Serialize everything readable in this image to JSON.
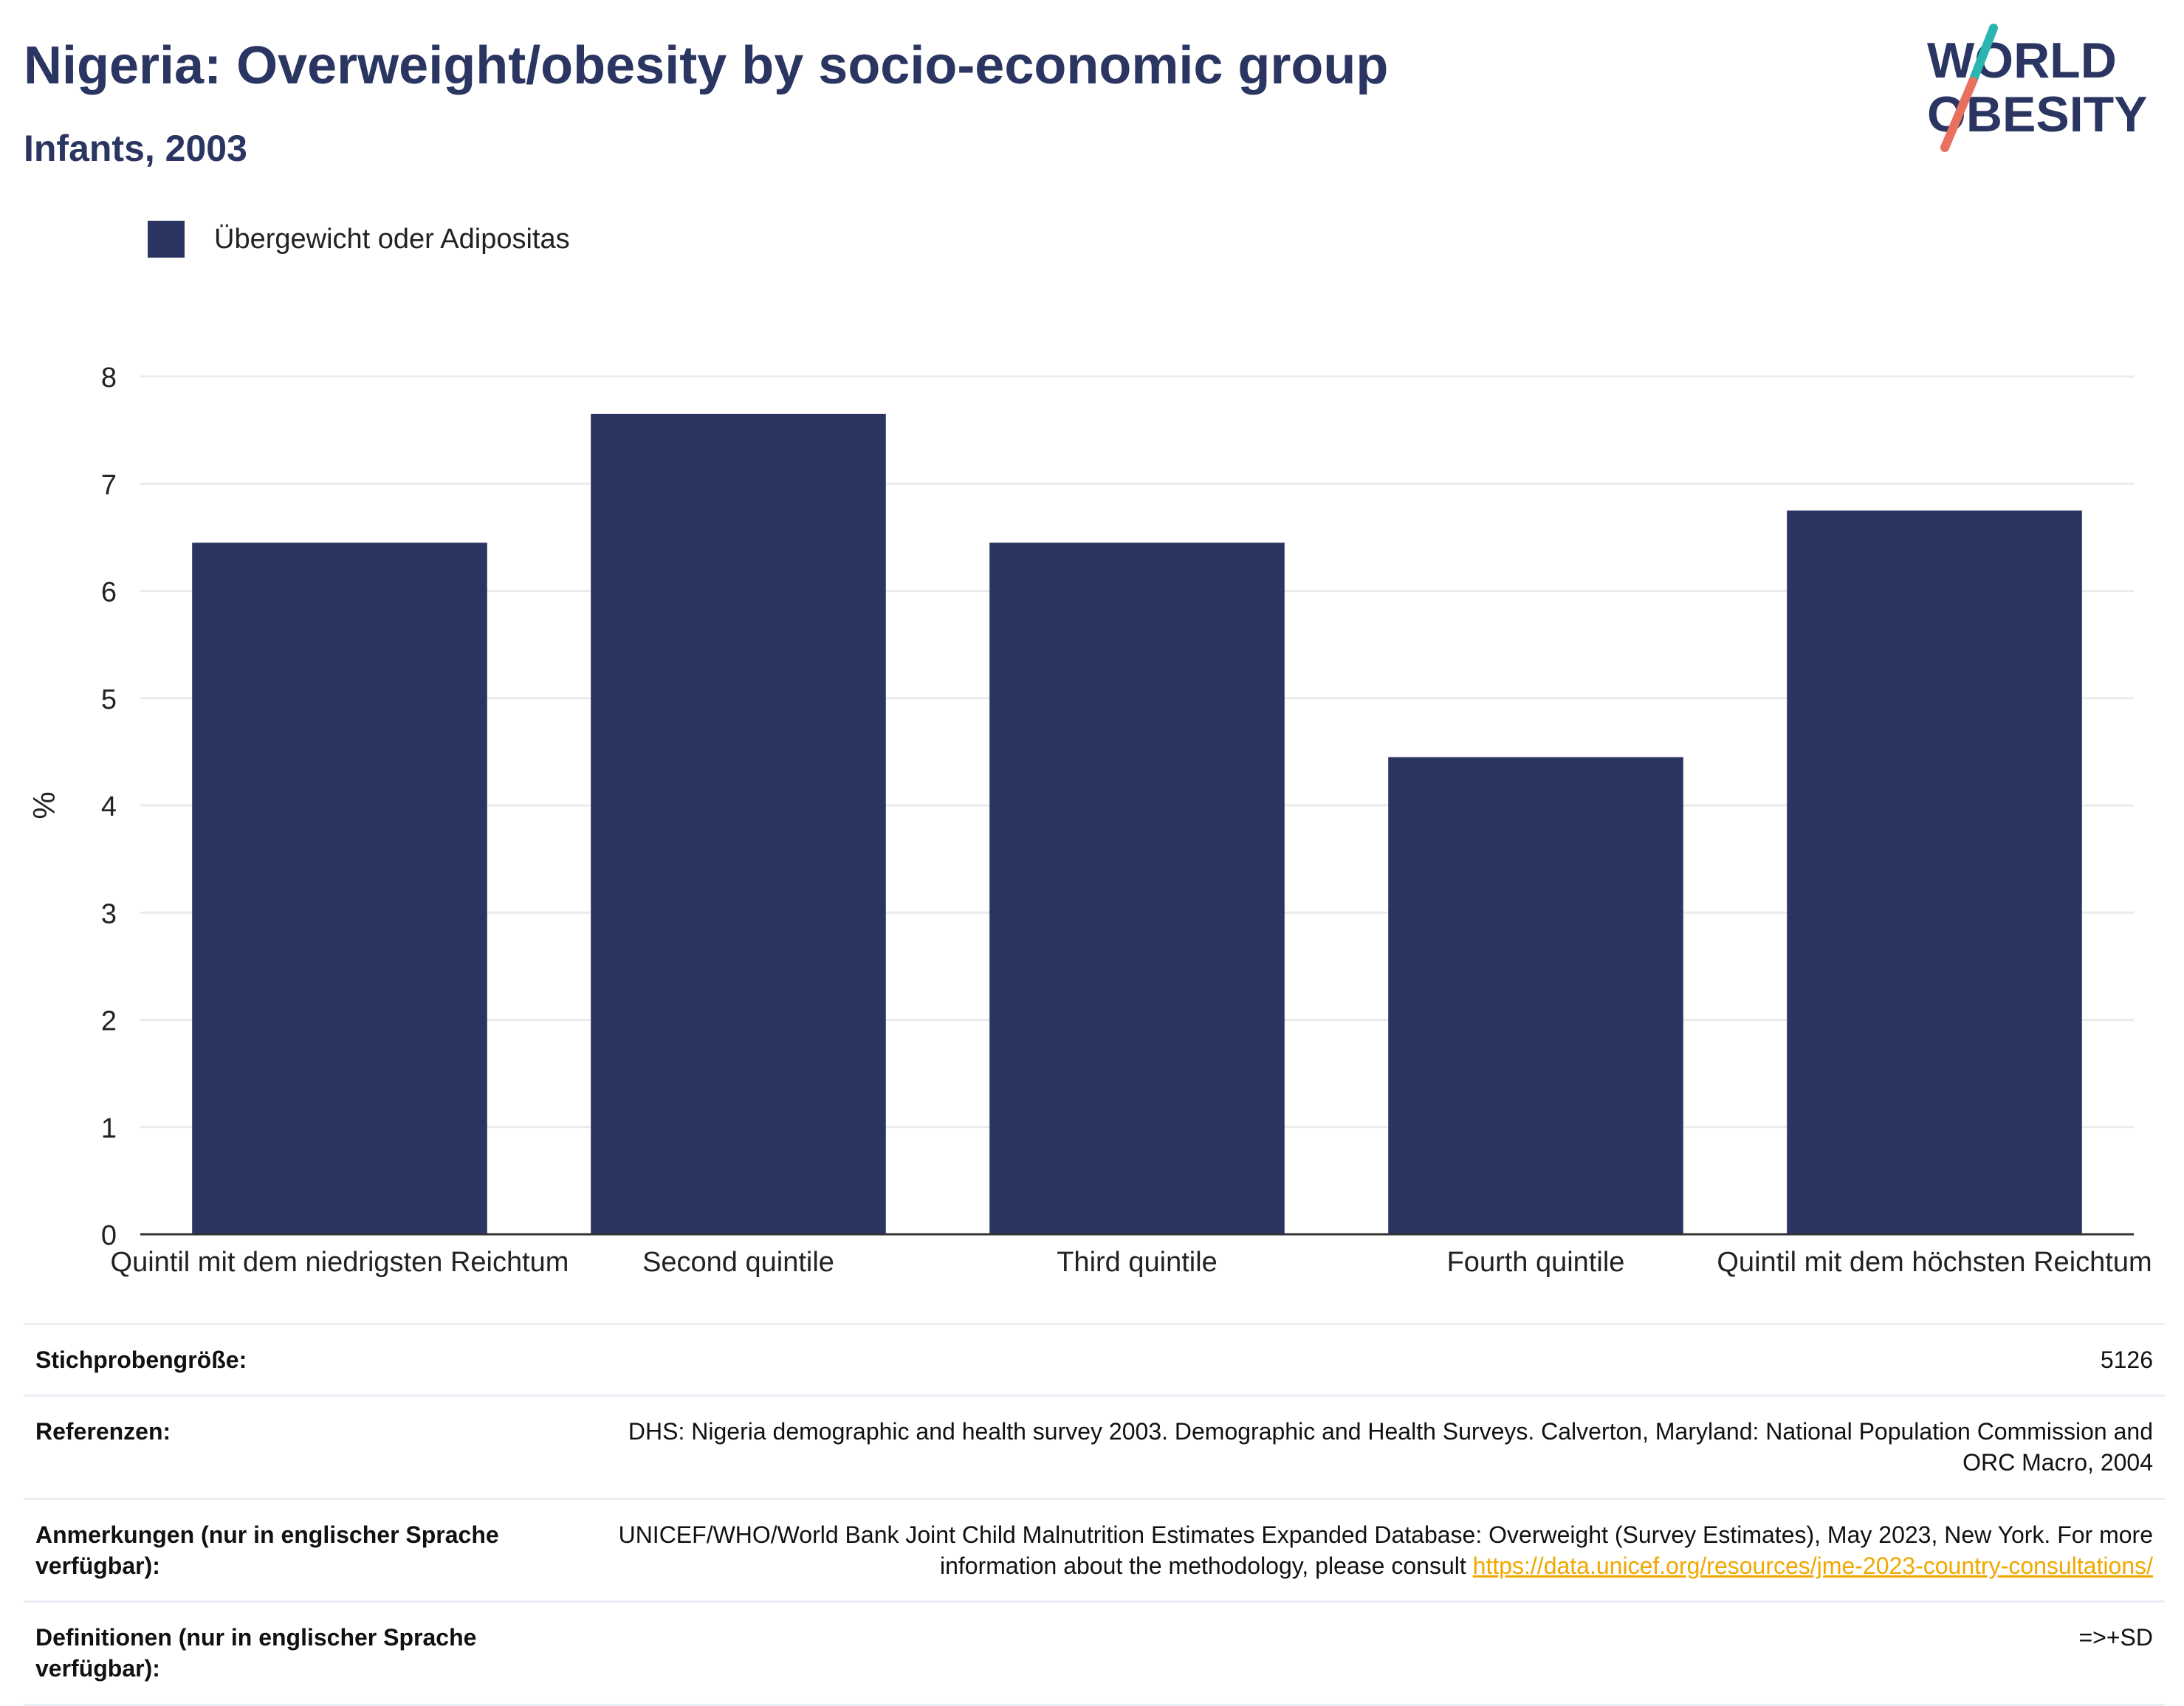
{
  "header": {
    "title": "Nigeria: Overweight/obesity by socio-economic group",
    "subtitle": "Infants, 2003"
  },
  "logo": {
    "line1": "WORLD",
    "line2": "OBESITY",
    "colors": {
      "navy": "#2b3562",
      "teal": "#2bb5b0",
      "coral": "#e8705f"
    }
  },
  "legend": {
    "label": "Übergewicht oder Adipositas",
    "color": "#2b3562"
  },
  "chart_data": {
    "type": "bar",
    "categories": [
      "Quintil mit dem niedrigsten Reichtum",
      "Second quintile",
      "Third quintile",
      "Fourth quintile",
      "Quintil mit dem höchsten Reichtum"
    ],
    "series": [
      {
        "name": "Übergewicht oder Adipositas",
        "values": [
          6.45,
          7.65,
          6.45,
          4.45,
          6.75
        ]
      }
    ],
    "ylabel": "%",
    "ylim": [
      0,
      8
    ],
    "yticks": [
      0,
      1,
      2,
      3,
      4,
      5,
      6,
      7,
      8
    ],
    "grid": true,
    "bar_color": "#2b3562"
  },
  "meta": {
    "sample_label": "Stichprobengröße:",
    "sample_value": "5126",
    "references_label": "Referenzen:",
    "references_value": "DHS: Nigeria demographic and health survey 2003. Demographic and Health Surveys. Calverton, Maryland: National Population Commission and ORC Macro, 2004",
    "notes_label": "Anmerkungen (nur in englischer Sprache verfügbar):",
    "notes_value": "UNICEF/WHO/World Bank Joint Child Malnutrition Estimates Expanded Database: Overweight (Survey Estimates), May 2023, New York. For more information about the methodology, please consult",
    "notes_link": "https://data.unicef.org/resources/jme-2023-country-consultations/",
    "definitions_label": "Definitionen (nur in englischer Sprache verfügbar):",
    "definitions_value": "=>+SD"
  }
}
